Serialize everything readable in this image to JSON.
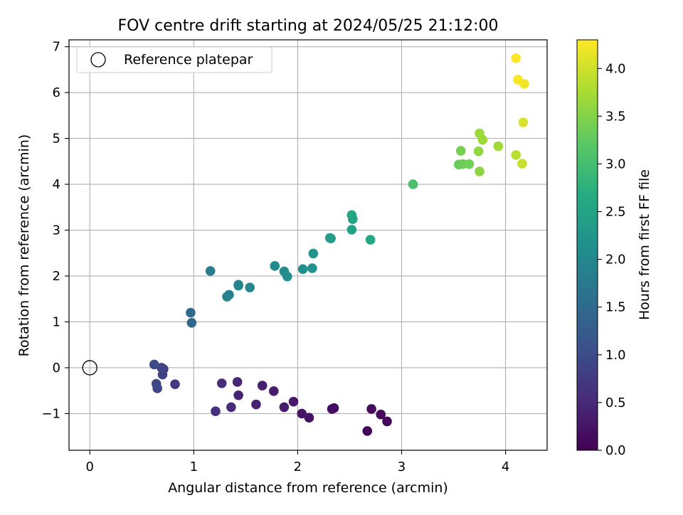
{
  "chart_data": {
    "type": "scatter",
    "title": "FOV centre drift starting at 2024/05/25 21:12:00",
    "xlabel": "Angular distance from reference (arcmin)",
    "ylabel": "Rotation from reference (arcmin)",
    "xlim": [
      -0.2,
      4.4
    ],
    "ylim": [
      -1.8,
      7.15
    ],
    "xticks": [
      0,
      1,
      2,
      3,
      4
    ],
    "yticks": [
      -1,
      0,
      1,
      2,
      3,
      4,
      5,
      6,
      7
    ],
    "grid": true,
    "legend": {
      "placement": "upper-left",
      "entries": [
        "Reference platepar"
      ]
    },
    "colorbar": {
      "label": "Hours from first FF file",
      "range": [
        0,
        4.3
      ],
      "ticks": [
        "0.0",
        "0.5",
        "1.0",
        "1.5",
        "2.0",
        "2.5",
        "3.0",
        "3.5",
        "4.0"
      ],
      "colormap": "viridis"
    },
    "reference_point": {
      "x": 0,
      "y": 0
    },
    "points": [
      {
        "x": 2.67,
        "y": -1.38,
        "t": 0.05
      },
      {
        "x": 2.86,
        "y": -1.17,
        "t": 0.07
      },
      {
        "x": 2.8,
        "y": -1.02,
        "t": 0.1
      },
      {
        "x": 2.71,
        "y": -0.9,
        "t": 0.12
      },
      {
        "x": 2.35,
        "y": -0.88,
        "t": 0.15
      },
      {
        "x": 2.33,
        "y": -0.9,
        "t": 0.18
      },
      {
        "x": 2.11,
        "y": -1.09,
        "t": 0.22
      },
      {
        "x": 2.04,
        "y": -1.0,
        "t": 0.25
      },
      {
        "x": 1.96,
        "y": -0.74,
        "t": 0.29
      },
      {
        "x": 1.87,
        "y": -0.86,
        "t": 0.32
      },
      {
        "x": 1.77,
        "y": -0.51,
        "t": 0.35
      },
      {
        "x": 1.66,
        "y": -0.39,
        "t": 0.38
      },
      {
        "x": 1.6,
        "y": -0.8,
        "t": 0.42
      },
      {
        "x": 1.43,
        "y": -0.6,
        "t": 0.45
      },
      {
        "x": 1.42,
        "y": -0.31,
        "t": 0.48
      },
      {
        "x": 1.36,
        "y": -0.86,
        "t": 0.52
      },
      {
        "x": 1.27,
        "y": -0.34,
        "t": 0.55
      },
      {
        "x": 1.21,
        "y": -0.95,
        "t": 0.6
      },
      {
        "x": 0.82,
        "y": -0.36,
        "t": 0.72
      },
      {
        "x": 0.71,
        "y": -0.03,
        "t": 0.82
      },
      {
        "x": 0.7,
        "y": -0.15,
        "t": 0.85
      },
      {
        "x": 0.69,
        "y": 0.0,
        "t": 0.88
      },
      {
        "x": 0.65,
        "y": -0.45,
        "t": 0.9
      },
      {
        "x": 0.64,
        "y": -0.35,
        "t": 0.93
      },
      {
        "x": 0.62,
        "y": 0.07,
        "t": 0.96
      },
      {
        "x": 0.98,
        "y": 0.98,
        "t": 1.48
      },
      {
        "x": 0.97,
        "y": 1.2,
        "t": 1.52
      },
      {
        "x": 1.16,
        "y": 2.11,
        "t": 1.8
      },
      {
        "x": 1.32,
        "y": 1.55,
        "t": 1.85
      },
      {
        "x": 1.34,
        "y": 1.59,
        "t": 1.88
      },
      {
        "x": 1.43,
        "y": 1.81,
        "t": 1.92
      },
      {
        "x": 1.43,
        "y": 1.79,
        "t": 1.94
      },
      {
        "x": 1.54,
        "y": 1.75,
        "t": 1.97
      },
      {
        "x": 1.78,
        "y": 2.22,
        "t": 2.05
      },
      {
        "x": 1.87,
        "y": 2.1,
        "t": 2.08
      },
      {
        "x": 1.9,
        "y": 1.99,
        "t": 2.1
      },
      {
        "x": 2.05,
        "y": 2.15,
        "t": 2.15
      },
      {
        "x": 2.14,
        "y": 2.17,
        "t": 2.18
      },
      {
        "x": 2.15,
        "y": 2.49,
        "t": 2.25
      },
      {
        "x": 2.31,
        "y": 2.83,
        "t": 2.35
      },
      {
        "x": 2.32,
        "y": 2.82,
        "t": 2.38
      },
      {
        "x": 2.52,
        "y": 3.01,
        "t": 2.48
      },
      {
        "x": 2.53,
        "y": 3.24,
        "t": 2.5
      },
      {
        "x": 2.52,
        "y": 3.33,
        "t": 2.52
      },
      {
        "x": 2.7,
        "y": 2.79,
        "t": 2.55
      },
      {
        "x": 3.11,
        "y": 4.0,
        "t": 3.05
      },
      {
        "x": 3.55,
        "y": 4.43,
        "t": 3.3
      },
      {
        "x": 3.59,
        "y": 4.44,
        "t": 3.35
      },
      {
        "x": 3.65,
        "y": 4.44,
        "t": 3.38
      },
      {
        "x": 3.57,
        "y": 4.73,
        "t": 3.4
      },
      {
        "x": 3.75,
        "y": 4.28,
        "t": 3.55
      },
      {
        "x": 3.74,
        "y": 4.72,
        "t": 3.6
      },
      {
        "x": 3.75,
        "y": 5.11,
        "t": 3.65
      },
      {
        "x": 3.78,
        "y": 4.97,
        "t": 3.68
      },
      {
        "x": 3.93,
        "y": 4.83,
        "t": 3.7
      },
      {
        "x": 4.1,
        "y": 4.64,
        "t": 3.85
      },
      {
        "x": 4.16,
        "y": 4.45,
        "t": 3.95
      },
      {
        "x": 4.17,
        "y": 5.35,
        "t": 4.05
      },
      {
        "x": 4.18,
        "y": 6.19,
        "t": 4.2
      },
      {
        "x": 4.12,
        "y": 6.28,
        "t": 4.25
      },
      {
        "x": 4.1,
        "y": 6.75,
        "t": 4.3
      }
    ]
  }
}
